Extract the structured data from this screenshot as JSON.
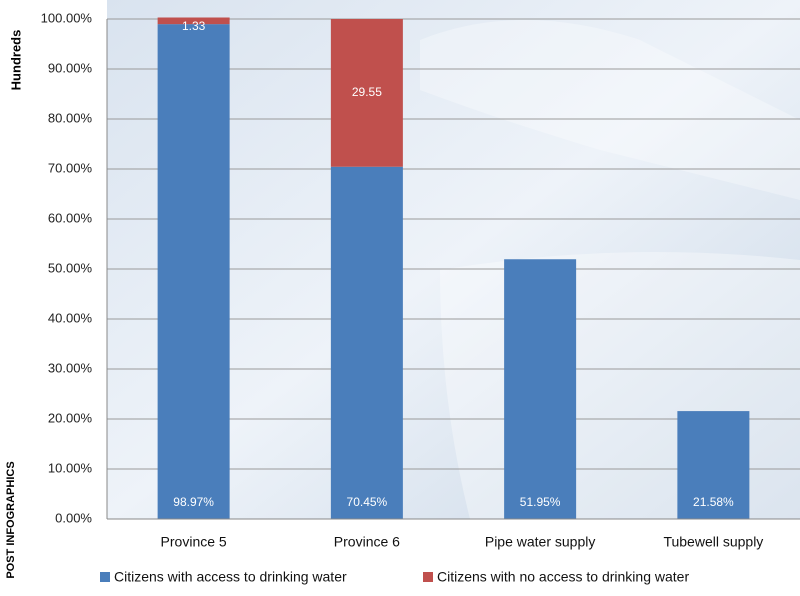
{
  "chart_data": {
    "type": "stacked_bar",
    "y_label": "Hundreds",
    "annotation": "POST INFOGRAPHICS",
    "categories": [
      "Province 5",
      "Province 6",
      "Pipe water supply",
      "Tubewell supply"
    ],
    "series": [
      {
        "name": "Citizens with access to drinking water",
        "color": "#4a7ebb",
        "values": [
          98.97,
          70.45,
          51.95,
          21.58
        ],
        "value_labels": [
          "98.97%",
          "70.45%",
          "51.95%",
          "21.58%"
        ]
      },
      {
        "name": "Citizens with no access to drinking water",
        "color": "#c0504d",
        "values": [
          1.33,
          29.55,
          null,
          null
        ],
        "value_labels": [
          "1.33",
          "29.55",
          null,
          null
        ]
      }
    ],
    "ylim": [
      0,
      100
    ],
    "yticks": [
      {
        "value": 0,
        "label": "0.00%"
      },
      {
        "value": 10,
        "label": "10.00%"
      },
      {
        "value": 20,
        "label": "20.00%"
      },
      {
        "value": 30,
        "label": "30.00%"
      },
      {
        "value": 40,
        "label": "40.00%"
      },
      {
        "value": 50,
        "label": "50.00%"
      },
      {
        "value": 60,
        "label": "60.00%"
      },
      {
        "value": 70,
        "label": "70.00%"
      },
      {
        "value": 80,
        "label": "80.00%"
      },
      {
        "value": 90,
        "label": "90.00%"
      },
      {
        "value": 100,
        "label": "100.00%"
      }
    ],
    "grid": true,
    "legend": "bottom"
  }
}
